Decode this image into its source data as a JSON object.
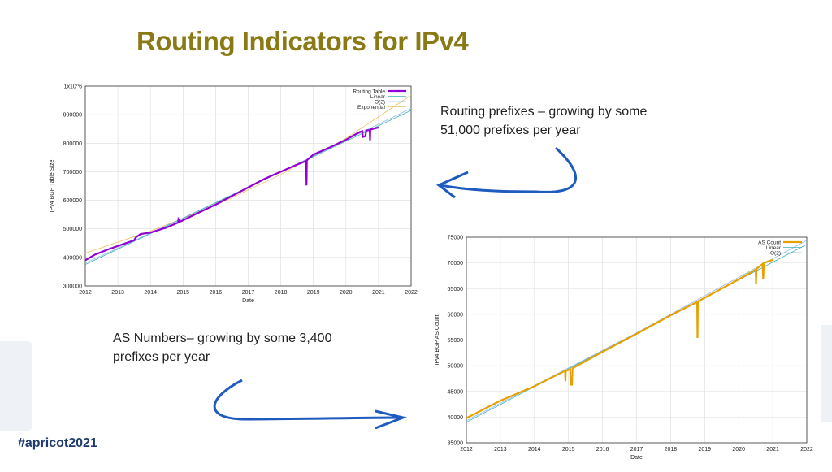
{
  "slide": {
    "title": "Routing Indicators for IPv4",
    "note_prefixes": [
      "Routing prefixes – growing by some",
      "51,000 prefixes per year"
    ],
    "note_as": [
      "AS Numbers– growing by some 3,400",
      "prefixes per year"
    ],
    "hashtag": "#apricot2021",
    "arrow_color": "#1f5bbf",
    "title_color": "#8a7a16"
  },
  "chart_data": [
    {
      "type": "line",
      "xlabel": "Date",
      "ylabel": "IPv4 BGP Table Size",
      "xlim": [
        2012,
        2022
      ],
      "ylim": [
        300000,
        1000000
      ],
      "xticks": [
        "2012",
        "2013",
        "2014",
        "2015",
        "2016",
        "2017",
        "2018",
        "2019",
        "2020",
        "2021",
        "2022"
      ],
      "yticks": [
        "300000",
        "400000",
        "500000",
        "600000",
        "700000",
        "800000",
        "900000",
        "1x10^6"
      ],
      "grid": true,
      "legend": "top-right",
      "series": [
        {
          "name": "Routing Table",
          "color": "#9400d3",
          "width": 2.2,
          "x": [
            2012,
            2012.3,
            2012.7,
            2013,
            2013.5,
            2013.55,
            2013.7,
            2014,
            2014.5,
            2014.85,
            2014.86,
            2014.9,
            2015,
            2015.5,
            2016,
            2016.5,
            2017,
            2017.5,
            2018,
            2018.5,
            2018.78,
            2018.79,
            2018.8,
            2019,
            2019.5,
            2020,
            2020.4,
            2020.5,
            2020.52,
            2020.6,
            2020.62,
            2020.73,
            2020.74,
            2020.75,
            2021
          ],
          "y": [
            390000,
            410000,
            428000,
            440000,
            460000,
            470000,
            482000,
            487000,
            505000,
            522000,
            533000,
            525000,
            530000,
            558000,
            585000,
            615000,
            645000,
            675000,
            700000,
            725000,
            738000,
            652000,
            740000,
            760000,
            785000,
            812000,
            838000,
            842000,
            822000,
            825000,
            845000,
            846000,
            810000,
            848000,
            855000
          ]
        },
        {
          "name": "Linear",
          "color": "#3fb0b8",
          "width": 0.8,
          "x": [
            2012,
            2022
          ],
          "y": [
            375000,
            915000
          ]
        },
        {
          "name": "O(2)",
          "color": "#8fb8e8",
          "width": 0.8,
          "x": [
            2012,
            2015,
            2018,
            2022
          ],
          "y": [
            380000,
            538000,
            700000,
            922000
          ]
        },
        {
          "name": "Exponential",
          "color": "#e8c060",
          "width": 0.8,
          "x": [
            2012,
            2014,
            2016,
            2018,
            2020,
            2022
          ],
          "y": [
            415000,
            492000,
            582000,
            690000,
            817000,
            968000
          ]
        }
      ]
    },
    {
      "type": "line",
      "xlabel": "Date",
      "ylabel": "IPv4 BGP AS Count",
      "xlim": [
        2012,
        2022
      ],
      "ylim": [
        35000,
        75000
      ],
      "xticks": [
        "2012",
        "2013",
        "2014",
        "2015",
        "2016",
        "2017",
        "2018",
        "2019",
        "2020",
        "2021",
        "2022"
      ],
      "yticks": [
        "35000",
        "40000",
        "45000",
        "50000",
        "55000",
        "60000",
        "65000",
        "70000",
        "75000"
      ],
      "grid": true,
      "legend": "top-right",
      "series": [
        {
          "name": "AS Count",
          "color": "#e8a000",
          "width": 2.2,
          "x": [
            2012,
            2013,
            2014,
            2014.9,
            2014.91,
            2014.92,
            2015.05,
            2015.06,
            2015.1,
            2015.12,
            2016,
            2017,
            2018,
            2018.78,
            2018.79,
            2018.8,
            2019,
            2020,
            2020.5,
            2020.51,
            2020.52,
            2020.7,
            2020.72,
            2020.74,
            2021
          ],
          "y": [
            39800,
            43200,
            46000,
            49000,
            47000,
            49000,
            49300,
            46300,
            46300,
            49500,
            52700,
            56200,
            59800,
            62400,
            55400,
            62500,
            63200,
            66800,
            68700,
            65900,
            68800,
            69800,
            66800,
            70000,
            70600
          ]
        },
        {
          "name": "Linear",
          "color": "#3fb0b8",
          "width": 0.8,
          "x": [
            2012,
            2022
          ],
          "y": [
            39000,
            73600
          ]
        },
        {
          "name": "O(2)",
          "color": "#8fb8e8",
          "width": 0.8,
          "x": [
            2012,
            2017,
            2022
          ],
          "y": [
            39300,
            56400,
            74400
          ]
        }
      ]
    }
  ]
}
